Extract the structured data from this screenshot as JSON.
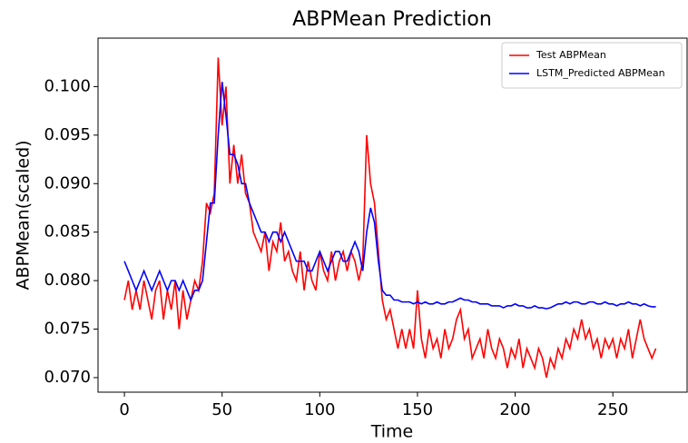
{
  "chart_data": {
    "type": "line",
    "title": "ABPMean Prediction",
    "x_label": "Time",
    "y_label": "ABPMean(scaled)",
    "x": [
      0,
      2,
      4,
      6,
      8,
      10,
      12,
      14,
      16,
      18,
      20,
      22,
      24,
      26,
      28,
      30,
      32,
      34,
      36,
      38,
      40,
      42,
      44,
      46,
      48,
      50,
      52,
      54,
      56,
      58,
      60,
      62,
      64,
      66,
      68,
      70,
      72,
      74,
      76,
      78,
      80,
      82,
      84,
      86,
      88,
      90,
      92,
      94,
      96,
      98,
      100,
      102,
      104,
      106,
      108,
      110,
      112,
      114,
      116,
      118,
      120,
      122,
      124,
      126,
      128,
      130,
      132,
      134,
      136,
      138,
      140,
      142,
      144,
      146,
      148,
      150,
      152,
      154,
      156,
      158,
      160,
      162,
      164,
      166,
      168,
      170,
      172,
      174,
      176,
      178,
      180,
      182,
      184,
      186,
      188,
      190,
      192,
      194,
      196,
      198,
      200,
      202,
      204,
      206,
      208,
      210,
      212,
      214,
      216,
      218,
      220,
      222,
      224,
      226,
      228,
      230,
      232,
      234,
      236,
      238,
      240,
      242,
      244,
      246,
      248,
      250,
      252,
      254,
      256,
      258,
      260,
      262,
      264,
      266,
      268,
      270,
      272
    ],
    "series": [
      {
        "name": "Test ABPMean",
        "color": "#ff0000",
        "values": [
          0.078,
          0.08,
          0.077,
          0.079,
          0.077,
          0.08,
          0.078,
          0.076,
          0.079,
          0.08,
          0.076,
          0.079,
          0.077,
          0.08,
          0.075,
          0.079,
          0.076,
          0.078,
          0.08,
          0.079,
          0.082,
          0.088,
          0.087,
          0.089,
          0.103,
          0.096,
          0.1,
          0.09,
          0.094,
          0.09,
          0.093,
          0.089,
          0.088,
          0.085,
          0.084,
          0.083,
          0.085,
          0.081,
          0.084,
          0.083,
          0.086,
          0.082,
          0.083,
          0.081,
          0.08,
          0.083,
          0.079,
          0.082,
          0.08,
          0.079,
          0.083,
          0.081,
          0.08,
          0.083,
          0.08,
          0.082,
          0.083,
          0.081,
          0.083,
          0.082,
          0.08,
          0.082,
          0.095,
          0.09,
          0.088,
          0.083,
          0.078,
          0.076,
          0.077,
          0.075,
          0.073,
          0.075,
          0.073,
          0.075,
          0.073,
          0.079,
          0.074,
          0.072,
          0.075,
          0.073,
          0.074,
          0.072,
          0.075,
          0.073,
          0.074,
          0.076,
          0.077,
          0.074,
          0.075,
          0.072,
          0.073,
          0.074,
          0.072,
          0.075,
          0.073,
          0.072,
          0.074,
          0.073,
          0.071,
          0.073,
          0.072,
          0.074,
          0.071,
          0.073,
          0.072,
          0.071,
          0.073,
          0.072,
          0.07,
          0.072,
          0.071,
          0.073,
          0.072,
          0.074,
          0.073,
          0.075,
          0.074,
          0.076,
          0.074,
          0.075,
          0.073,
          0.074,
          0.072,
          0.074,
          0.073,
          0.074,
          0.072,
          0.074,
          0.073,
          0.075,
          0.072,
          0.074,
          0.076,
          0.074,
          0.073,
          0.072,
          0.073
        ]
      },
      {
        "name": "LSTM_Predicted ABPMean",
        "color": "#0000ff",
        "values": [
          0.082,
          0.081,
          0.08,
          0.079,
          0.08,
          0.081,
          0.08,
          0.079,
          0.08,
          0.081,
          0.08,
          0.079,
          0.08,
          0.08,
          0.079,
          0.08,
          0.079,
          0.078,
          0.079,
          0.079,
          0.08,
          0.084,
          0.088,
          0.088,
          0.095,
          0.1005,
          0.097,
          0.093,
          0.093,
          0.092,
          0.09,
          0.09,
          0.088,
          0.087,
          0.086,
          0.085,
          0.085,
          0.084,
          0.085,
          0.085,
          0.084,
          0.085,
          0.084,
          0.083,
          0.082,
          0.082,
          0.082,
          0.081,
          0.081,
          0.082,
          0.083,
          0.082,
          0.081,
          0.082,
          0.083,
          0.083,
          0.082,
          0.082,
          0.083,
          0.084,
          0.083,
          0.081,
          0.085,
          0.0875,
          0.086,
          0.082,
          0.079,
          0.0785,
          0.0785,
          0.078,
          0.078,
          0.0778,
          0.0778,
          0.0778,
          0.0776,
          0.0778,
          0.0776,
          0.0778,
          0.0776,
          0.0776,
          0.0778,
          0.0776,
          0.0776,
          0.0778,
          0.0778,
          0.078,
          0.0782,
          0.078,
          0.078,
          0.0778,
          0.0778,
          0.0776,
          0.0776,
          0.0776,
          0.0774,
          0.0774,
          0.0774,
          0.0772,
          0.0774,
          0.0774,
          0.0776,
          0.0774,
          0.0774,
          0.0772,
          0.0772,
          0.0774,
          0.0772,
          0.0772,
          0.0771,
          0.0772,
          0.0774,
          0.0776,
          0.0776,
          0.0778,
          0.0776,
          0.0778,
          0.0778,
          0.0776,
          0.0776,
          0.0778,
          0.0778,
          0.0776,
          0.0776,
          0.0778,
          0.0776,
          0.0776,
          0.0774,
          0.0776,
          0.0776,
          0.0778,
          0.0776,
          0.0776,
          0.0774,
          0.0776,
          0.0774,
          0.0773,
          0.0773
        ]
      }
    ],
    "xlim": [
      -13.5,
      288
    ],
    "xticks": [
      0,
      50,
      100,
      150,
      200,
      250
    ],
    "ylim": [
      0.0685,
      0.105
    ],
    "yticks": [
      {
        "value": 0.07,
        "label": "0.070"
      },
      0.075,
      {
        "value": 0.08,
        "label": "0.080"
      },
      0.085,
      {
        "value": 0.09,
        "label": "0.090"
      },
      0.095,
      {
        "value": 0.1,
        "label": "0.100"
      }
    ],
    "grid": false,
    "legend": "upper right"
  }
}
